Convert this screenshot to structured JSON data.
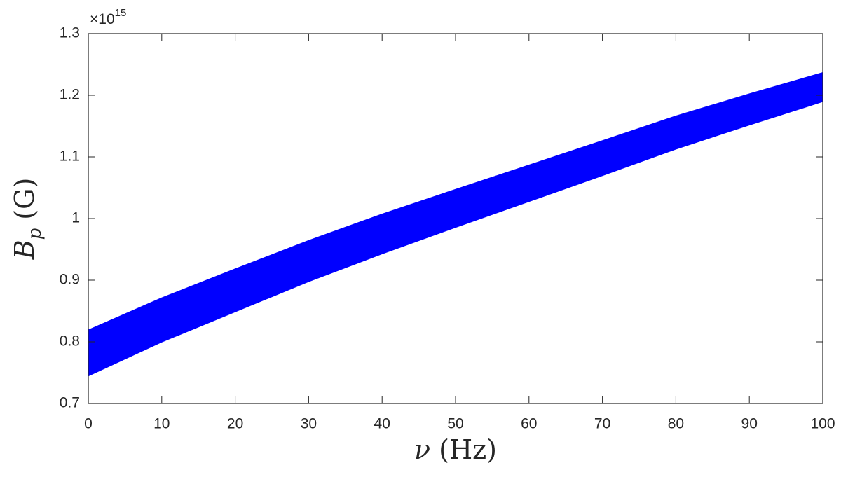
{
  "chart_data": {
    "type": "band",
    "x": [
      0,
      10,
      20,
      30,
      40,
      50,
      60,
      70,
      80,
      90,
      100
    ],
    "series": [
      {
        "color": "#0000ff",
        "upper": [
          0.82,
          0.872,
          0.919,
          0.965,
          1.008,
          1.048,
          1.0875,
          1.127,
          1.167,
          1.203,
          1.2375
        ],
        "lower": [
          0.744,
          0.799,
          0.848,
          0.897,
          0.942,
          0.985,
          1.027,
          1.069,
          1.112,
          1.151,
          1.189
        ]
      }
    ],
    "xlim": [
      0,
      100
    ],
    "xticks": [
      0,
      10,
      20,
      30,
      40,
      50,
      60,
      70,
      80,
      90,
      100
    ],
    "ylim": [
      0.7,
      1.3
    ],
    "yticks": [
      0.7,
      0.8,
      0.9,
      1,
      1.1,
      1.2,
      1.3
    ],
    "y_multiplier": {
      "base": "×10",
      "exponent": "15"
    },
    "xlabel": {
      "symbol": "ν",
      "unit": "(Hz)"
    },
    "ylabel": {
      "symbol": "B",
      "subscript": "p",
      "unit": "(G)"
    },
    "grid": false
  }
}
